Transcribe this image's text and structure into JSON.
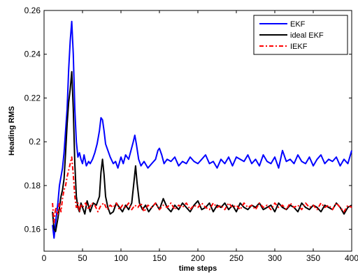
{
  "chart_data": {
    "type": "line",
    "title": "",
    "xlabel": "time steps",
    "ylabel": "Heading RMS",
    "xlim": [
      0,
      400
    ],
    "ylim": [
      0.15,
      0.26
    ],
    "x_ticks": [
      0,
      50,
      100,
      150,
      200,
      250,
      300,
      350,
      400
    ],
    "x_tick_labels": [
      "0",
      "50",
      "100",
      "150",
      "200",
      "250",
      "300",
      "350",
      "400"
    ],
    "y_ticks": [
      0.16,
      0.18,
      0.2,
      0.22,
      0.24,
      0.26
    ],
    "y_tick_labels": [
      "0.16",
      "0.18",
      "0.2",
      "0.22",
      "0.24",
      "0.26"
    ],
    "grid": false,
    "legend_position": "top-right",
    "series": [
      {
        "name": "EKF",
        "color": "#0000ff",
        "dash": "solid",
        "points": [
          [
            11,
            0.162
          ],
          [
            13,
            0.156
          ],
          [
            15,
            0.163
          ],
          [
            18,
            0.172
          ],
          [
            20,
            0.18
          ],
          [
            22,
            0.184
          ],
          [
            24,
            0.188
          ],
          [
            26,
            0.195
          ],
          [
            28,
            0.205
          ],
          [
            30,
            0.215
          ],
          [
            32,
            0.233
          ],
          [
            34,
            0.246
          ],
          [
            36,
            0.255
          ],
          [
            38,
            0.24
          ],
          [
            40,
            0.215
          ],
          [
            42,
            0.2
          ],
          [
            44,
            0.193
          ],
          [
            46,
            0.195
          ],
          [
            48,
            0.192
          ],
          [
            50,
            0.19
          ],
          [
            52,
            0.194
          ],
          [
            55,
            0.189
          ],
          [
            58,
            0.191
          ],
          [
            60,
            0.19
          ],
          [
            63,
            0.192
          ],
          [
            66,
            0.195
          ],
          [
            69,
            0.199
          ],
          [
            72,
            0.205
          ],
          [
            74,
            0.211
          ],
          [
            76,
            0.21
          ],
          [
            78,
            0.205
          ],
          [
            80,
            0.199
          ],
          [
            83,
            0.196
          ],
          [
            86,
            0.193
          ],
          [
            90,
            0.19
          ],
          [
            93,
            0.191
          ],
          [
            96,
            0.188
          ],
          [
            100,
            0.193
          ],
          [
            103,
            0.19
          ],
          [
            106,
            0.194
          ],
          [
            110,
            0.192
          ],
          [
            113,
            0.196
          ],
          [
            116,
            0.2
          ],
          [
            118,
            0.203
          ],
          [
            120,
            0.199
          ],
          [
            123,
            0.192
          ],
          [
            126,
            0.189
          ],
          [
            130,
            0.191
          ],
          [
            135,
            0.188
          ],
          [
            140,
            0.19
          ],
          [
            145,
            0.192
          ],
          [
            148,
            0.196
          ],
          [
            150,
            0.197
          ],
          [
            153,
            0.194
          ],
          [
            156,
            0.19
          ],
          [
            160,
            0.192
          ],
          [
            165,
            0.191
          ],
          [
            170,
            0.193
          ],
          [
            175,
            0.189
          ],
          [
            180,
            0.191
          ],
          [
            185,
            0.19
          ],
          [
            190,
            0.193
          ],
          [
            195,
            0.191
          ],
          [
            200,
            0.19
          ],
          [
            205,
            0.192
          ],
          [
            210,
            0.194
          ],
          [
            215,
            0.19
          ],
          [
            220,
            0.191
          ],
          [
            225,
            0.188
          ],
          [
            230,
            0.192
          ],
          [
            235,
            0.19
          ],
          [
            240,
            0.193
          ],
          [
            245,
            0.189
          ],
          [
            250,
            0.193
          ],
          [
            255,
            0.192
          ],
          [
            260,
            0.191
          ],
          [
            265,
            0.194
          ],
          [
            270,
            0.19
          ],
          [
            275,
            0.192
          ],
          [
            280,
            0.189
          ],
          [
            285,
            0.194
          ],
          [
            290,
            0.191
          ],
          [
            295,
            0.19
          ],
          [
            300,
            0.193
          ],
          [
            305,
            0.188
          ],
          [
            310,
            0.196
          ],
          [
            315,
            0.191
          ],
          [
            320,
            0.192
          ],
          [
            325,
            0.19
          ],
          [
            330,
            0.194
          ],
          [
            335,
            0.191
          ],
          [
            340,
            0.19
          ],
          [
            345,
            0.193
          ],
          [
            350,
            0.189
          ],
          [
            355,
            0.192
          ],
          [
            360,
            0.194
          ],
          [
            365,
            0.19
          ],
          [
            370,
            0.192
          ],
          [
            375,
            0.191
          ],
          [
            380,
            0.193
          ],
          [
            385,
            0.189
          ],
          [
            390,
            0.192
          ],
          [
            395,
            0.19
          ],
          [
            400,
            0.196
          ]
        ]
      },
      {
        "name": "ideal EKF",
        "color": "#000000",
        "dash": "solid",
        "points": [
          [
            11,
            0.168
          ],
          [
            13,
            0.16
          ],
          [
            15,
            0.159
          ],
          [
            18,
            0.165
          ],
          [
            20,
            0.17
          ],
          [
            22,
            0.175
          ],
          [
            24,
            0.178
          ],
          [
            26,
            0.183
          ],
          [
            28,
            0.195
          ],
          [
            30,
            0.208
          ],
          [
            32,
            0.218
          ],
          [
            34,
            0.224
          ],
          [
            36,
            0.232
          ],
          [
            38,
            0.215
          ],
          [
            40,
            0.19
          ],
          [
            42,
            0.175
          ],
          [
            44,
            0.17
          ],
          [
            46,
            0.168
          ],
          [
            48,
            0.172
          ],
          [
            50,
            0.17
          ],
          [
            53,
            0.167
          ],
          [
            56,
            0.173
          ],
          [
            60,
            0.168
          ],
          [
            64,
            0.172
          ],
          [
            68,
            0.171
          ],
          [
            72,
            0.175
          ],
          [
            74,
            0.186
          ],
          [
            76,
            0.192
          ],
          [
            78,
            0.185
          ],
          [
            80,
            0.175
          ],
          [
            83,
            0.17
          ],
          [
            86,
            0.167
          ],
          [
            90,
            0.168
          ],
          [
            94,
            0.172
          ],
          [
            98,
            0.17
          ],
          [
            102,
            0.168
          ],
          [
            106,
            0.171
          ],
          [
            110,
            0.169
          ],
          [
            114,
            0.172
          ],
          [
            117,
            0.182
          ],
          [
            119,
            0.189
          ],
          [
            121,
            0.181
          ],
          [
            124,
            0.172
          ],
          [
            128,
            0.169
          ],
          [
            132,
            0.171
          ],
          [
            136,
            0.168
          ],
          [
            140,
            0.17
          ],
          [
            145,
            0.172
          ],
          [
            150,
            0.169
          ],
          [
            155,
            0.174
          ],
          [
            160,
            0.17
          ],
          [
            165,
            0.168
          ],
          [
            170,
            0.171
          ],
          [
            175,
            0.169
          ],
          [
            180,
            0.172
          ],
          [
            185,
            0.17
          ],
          [
            190,
            0.168
          ],
          [
            195,
            0.171
          ],
          [
            200,
            0.173
          ],
          [
            205,
            0.169
          ],
          [
            210,
            0.17
          ],
          [
            215,
            0.172
          ],
          [
            220,
            0.168
          ],
          [
            225,
            0.171
          ],
          [
            230,
            0.17
          ],
          [
            235,
            0.172
          ],
          [
            240,
            0.169
          ],
          [
            245,
            0.171
          ],
          [
            250,
            0.168
          ],
          [
            255,
            0.172
          ],
          [
            260,
            0.17
          ],
          [
            265,
            0.169
          ],
          [
            270,
            0.171
          ],
          [
            275,
            0.17
          ],
          [
            280,
            0.172
          ],
          [
            285,
            0.169
          ],
          [
            290,
            0.17
          ],
          [
            295,
            0.171
          ],
          [
            300,
            0.168
          ],
          [
            305,
            0.172
          ],
          [
            310,
            0.17
          ],
          [
            315,
            0.169
          ],
          [
            320,
            0.171
          ],
          [
            325,
            0.17
          ],
          [
            330,
            0.168
          ],
          [
            335,
            0.172
          ],
          [
            340,
            0.17
          ],
          [
            345,
            0.169
          ],
          [
            350,
            0.171
          ],
          [
            355,
            0.17
          ],
          [
            360,
            0.168
          ],
          [
            365,
            0.171
          ],
          [
            370,
            0.17
          ],
          [
            375,
            0.169
          ],
          [
            380,
            0.172
          ],
          [
            385,
            0.17
          ],
          [
            390,
            0.167
          ],
          [
            395,
            0.17
          ],
          [
            400,
            0.171
          ]
        ]
      },
      {
        "name": "IEKF",
        "color": "#ff0000",
        "dash": "dashdot",
        "points": [
          [
            11,
            0.172
          ],
          [
            13,
            0.163
          ],
          [
            15,
            0.17
          ],
          [
            18,
            0.167
          ],
          [
            20,
            0.172
          ],
          [
            22,
            0.168
          ],
          [
            24,
            0.174
          ],
          [
            26,
            0.178
          ],
          [
            28,
            0.18
          ],
          [
            30,
            0.184
          ],
          [
            32,
            0.187
          ],
          [
            34,
            0.19
          ],
          [
            36,
            0.193
          ],
          [
            38,
            0.185
          ],
          [
            40,
            0.175
          ],
          [
            42,
            0.17
          ],
          [
            44,
            0.172
          ],
          [
            46,
            0.168
          ],
          [
            48,
            0.171
          ],
          [
            50,
            0.17
          ],
          [
            54,
            0.172
          ],
          [
            58,
            0.169
          ],
          [
            62,
            0.172
          ],
          [
            66,
            0.171
          ],
          [
            70,
            0.168
          ],
          [
            74,
            0.171
          ],
          [
            78,
            0.172
          ],
          [
            82,
            0.169
          ],
          [
            86,
            0.171
          ],
          [
            90,
            0.17
          ],
          [
            94,
            0.172
          ],
          [
            98,
            0.169
          ],
          [
            102,
            0.171
          ],
          [
            106,
            0.17
          ],
          [
            110,
            0.172
          ],
          [
            114,
            0.169
          ],
          [
            118,
            0.171
          ],
          [
            122,
            0.17
          ],
          [
            126,
            0.172
          ],
          [
            130,
            0.168
          ],
          [
            135,
            0.171
          ],
          [
            140,
            0.17
          ],
          [
            145,
            0.172
          ],
          [
            150,
            0.169
          ],
          [
            155,
            0.171
          ],
          [
            160,
            0.17
          ],
          [
            165,
            0.172
          ],
          [
            170,
            0.169
          ],
          [
            175,
            0.171
          ],
          [
            180,
            0.17
          ],
          [
            185,
            0.172
          ],
          [
            190,
            0.169
          ],
          [
            195,
            0.171
          ],
          [
            200,
            0.17
          ],
          [
            205,
            0.172
          ],
          [
            210,
            0.17
          ],
          [
            215,
            0.169
          ],
          [
            220,
            0.172
          ],
          [
            225,
            0.17
          ],
          [
            230,
            0.171
          ],
          [
            235,
            0.169
          ],
          [
            240,
            0.172
          ],
          [
            245,
            0.17
          ],
          [
            250,
            0.171
          ],
          [
            255,
            0.169
          ],
          [
            260,
            0.172
          ],
          [
            265,
            0.17
          ],
          [
            270,
            0.171
          ],
          [
            275,
            0.169
          ],
          [
            280,
            0.172
          ],
          [
            285,
            0.17
          ],
          [
            290,
            0.171
          ],
          [
            295,
            0.169
          ],
          [
            300,
            0.172
          ],
          [
            305,
            0.17
          ],
          [
            310,
            0.171
          ],
          [
            315,
            0.169
          ],
          [
            320,
            0.172
          ],
          [
            325,
            0.17
          ],
          [
            330,
            0.171
          ],
          [
            335,
            0.169
          ],
          [
            340,
            0.172
          ],
          [
            345,
            0.17
          ],
          [
            350,
            0.171
          ],
          [
            355,
            0.169
          ],
          [
            360,
            0.172
          ],
          [
            365,
            0.17
          ],
          [
            370,
            0.171
          ],
          [
            375,
            0.169
          ],
          [
            380,
            0.172
          ],
          [
            385,
            0.17
          ],
          [
            390,
            0.168
          ],
          [
            395,
            0.171
          ],
          [
            400,
            0.17
          ]
        ]
      }
    ]
  }
}
